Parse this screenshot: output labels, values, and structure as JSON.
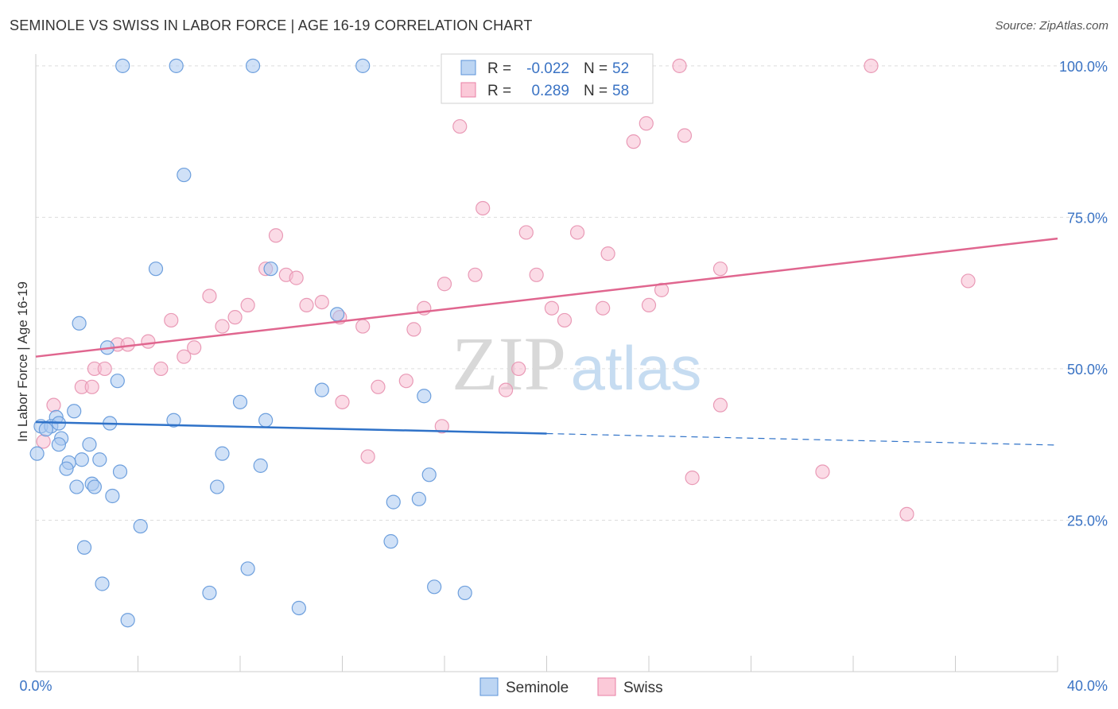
{
  "title": "SEMINOLE VS SWISS IN LABOR FORCE | AGE 16-19 CORRELATION CHART",
  "source": "Source: ZipAtlas.com",
  "colors": {
    "seminole": "#5b93d8",
    "swiss": "#e87fa4",
    "seminole_line": "#2f72c8",
    "swiss_line": "#e0668f",
    "tick": "#3a73c4"
  },
  "chart_data": {
    "type": "scatter",
    "ylabel": "In Labor Force | Age 16-19",
    "xlim": [
      0,
      40
    ],
    "ylim": [
      0,
      103
    ],
    "x_tick_labels": [
      {
        "v": 0,
        "label": "0.0%"
      },
      {
        "v": 40,
        "label": "40.0%"
      }
    ],
    "y_tick_labels": [
      {
        "v": 25,
        "label": "25.0%"
      },
      {
        "v": 50,
        "label": "50.0%"
      },
      {
        "v": 75,
        "label": "75.0%"
      },
      {
        "v": 100,
        "label": "100.0%"
      }
    ],
    "stats": [
      {
        "r_label": "R =",
        "r": "-0.022",
        "n_label": "N =",
        "n": "52"
      },
      {
        "r_label": "R =",
        "r": "0.289",
        "n_label": "N =",
        "n": "58"
      }
    ],
    "watermark": {
      "a": "ZIP",
      "b": "atlas"
    },
    "legend": [
      {
        "name": "Seminole"
      },
      {
        "name": "Swiss"
      }
    ],
    "series": [
      {
        "name": "Seminole",
        "trend": {
          "x0": 0,
          "y0": 41.2,
          "x1": 20,
          "y1": 39.3,
          "x_end": 40,
          "y_end": 37.4
        },
        "points": [
          [
            3.4,
            100
          ],
          [
            5.5,
            100
          ],
          [
            8.5,
            100
          ],
          [
            12.8,
            100
          ],
          [
            5.8,
            82
          ],
          [
            4.7,
            66.5
          ],
          [
            9.2,
            66.5
          ],
          [
            1.7,
            57.5
          ],
          [
            2.8,
            53.5
          ],
          [
            11.8,
            59
          ],
          [
            3.2,
            48
          ],
          [
            11.2,
            46.5
          ],
          [
            15.2,
            45.5
          ],
          [
            8,
            44.5
          ],
          [
            1.5,
            43
          ],
          [
            0.8,
            42
          ],
          [
            0.2,
            40.5
          ],
          [
            0.6,
            40.5
          ],
          [
            2.9,
            41
          ],
          [
            5.4,
            41.5
          ],
          [
            9,
            41.5
          ],
          [
            1.0,
            38.5
          ],
          [
            0.9,
            37.5
          ],
          [
            2.1,
            37.5
          ],
          [
            0.05,
            36
          ],
          [
            7.3,
            36
          ],
          [
            1.8,
            35
          ],
          [
            2.5,
            35
          ],
          [
            1.3,
            34.5
          ],
          [
            1.2,
            33.5
          ],
          [
            8.8,
            34
          ],
          [
            3.3,
            33
          ],
          [
            15.4,
            32.5
          ],
          [
            2.2,
            31
          ],
          [
            1.6,
            30.5
          ],
          [
            2.3,
            30.5
          ],
          [
            7.1,
            30.5
          ],
          [
            3.0,
            29
          ],
          [
            15,
            28.5
          ],
          [
            14,
            28
          ],
          [
            4.1,
            24
          ],
          [
            13.9,
            21.5
          ],
          [
            1.9,
            20.5
          ],
          [
            8.3,
            17
          ],
          [
            2.6,
            14.5
          ],
          [
            6.8,
            13
          ],
          [
            15.6,
            14
          ],
          [
            16.8,
            13
          ],
          [
            10.3,
            10.5
          ],
          [
            3.6,
            8.5
          ],
          [
            0.9,
            41
          ],
          [
            0.4,
            40
          ]
        ]
      },
      {
        "name": "Swiss",
        "trend": {
          "x0": 0,
          "y0": 52,
          "x1": 40,
          "y1": 71.5
        },
        "points": [
          [
            25.2,
            100
          ],
          [
            32.7,
            100
          ],
          [
            16.6,
            90
          ],
          [
            23.9,
            90.5
          ],
          [
            23.4,
            87.5
          ],
          [
            25.4,
            88.5
          ],
          [
            17.5,
            76.5
          ],
          [
            19.2,
            72.5
          ],
          [
            21.2,
            72.5
          ],
          [
            9.4,
            72
          ],
          [
            22.4,
            69
          ],
          [
            9,
            66.5
          ],
          [
            19.6,
            65.5
          ],
          [
            17.2,
            65.5
          ],
          [
            26.8,
            66.5
          ],
          [
            9.8,
            65.5
          ],
          [
            10.2,
            65
          ],
          [
            16,
            64
          ],
          [
            36.5,
            64.5
          ],
          [
            24.5,
            63
          ],
          [
            6.8,
            62
          ],
          [
            8.3,
            60.5
          ],
          [
            10.6,
            60.5
          ],
          [
            11.2,
            61
          ],
          [
            15.2,
            60
          ],
          [
            20.2,
            60
          ],
          [
            22.2,
            60
          ],
          [
            24,
            60.5
          ],
          [
            7.8,
            58.5
          ],
          [
            11.9,
            58.5
          ],
          [
            5.3,
            58
          ],
          [
            20.7,
            58
          ],
          [
            7.3,
            57
          ],
          [
            12.8,
            57
          ],
          [
            14.8,
            56.5
          ],
          [
            3.2,
            54
          ],
          [
            3.6,
            54
          ],
          [
            4.4,
            54.5
          ],
          [
            6.2,
            53.5
          ],
          [
            5.8,
            52
          ],
          [
            2.3,
            50
          ],
          [
            2.7,
            50
          ],
          [
            4.9,
            50
          ],
          [
            18.9,
            50
          ],
          [
            14.5,
            48
          ],
          [
            1.8,
            47
          ],
          [
            2.2,
            47
          ],
          [
            13.4,
            47
          ],
          [
            18.4,
            46.5
          ],
          [
            12,
            44.5
          ],
          [
            26.8,
            44
          ],
          [
            0.7,
            44
          ],
          [
            15.9,
            40.5
          ],
          [
            13,
            35.5
          ],
          [
            25.7,
            32
          ],
          [
            30.8,
            33
          ],
          [
            34.1,
            26
          ],
          [
            0.3,
            38
          ]
        ]
      }
    ]
  }
}
